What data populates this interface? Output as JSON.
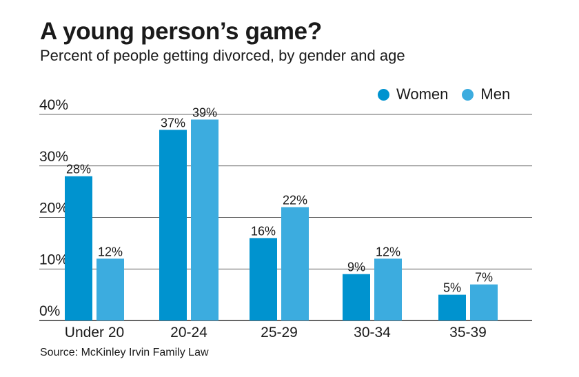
{
  "title": "A young person’s game?",
  "subtitle": "Percent of people getting divorced, by gender and age",
  "source": "Source: McKinley Irvin Family Law",
  "colors": {
    "women": "#0093cf",
    "men": "#3cacdf",
    "grid": "#333333"
  },
  "legend": {
    "women": "Women",
    "men": "Men"
  },
  "chart_data": {
    "type": "bar",
    "title": "A young person’s game?",
    "subtitle": "Percent of people getting divorced, by gender and age",
    "xlabel": "",
    "ylabel": "",
    "ylim": [
      0,
      40
    ],
    "yticks": [
      0,
      10,
      20,
      30,
      40
    ],
    "ytick_labels": [
      "0%",
      "10%",
      "20%",
      "30%",
      "40%"
    ],
    "categories": [
      "Under 20",
      "20-24",
      "25-29",
      "30-34",
      "35-39"
    ],
    "series": [
      {
        "name": "Women",
        "values": [
          28,
          37,
          16,
          9,
          5
        ],
        "labels": [
          "28%",
          "37%",
          "16%",
          "9%",
          "5%"
        ]
      },
      {
        "name": "Men",
        "values": [
          12,
          39,
          22,
          12,
          7
        ],
        "labels": [
          "12%",
          "39%",
          "22%",
          "12%",
          "7%"
        ]
      }
    ],
    "legend_position": "top-right",
    "grid": true
  }
}
